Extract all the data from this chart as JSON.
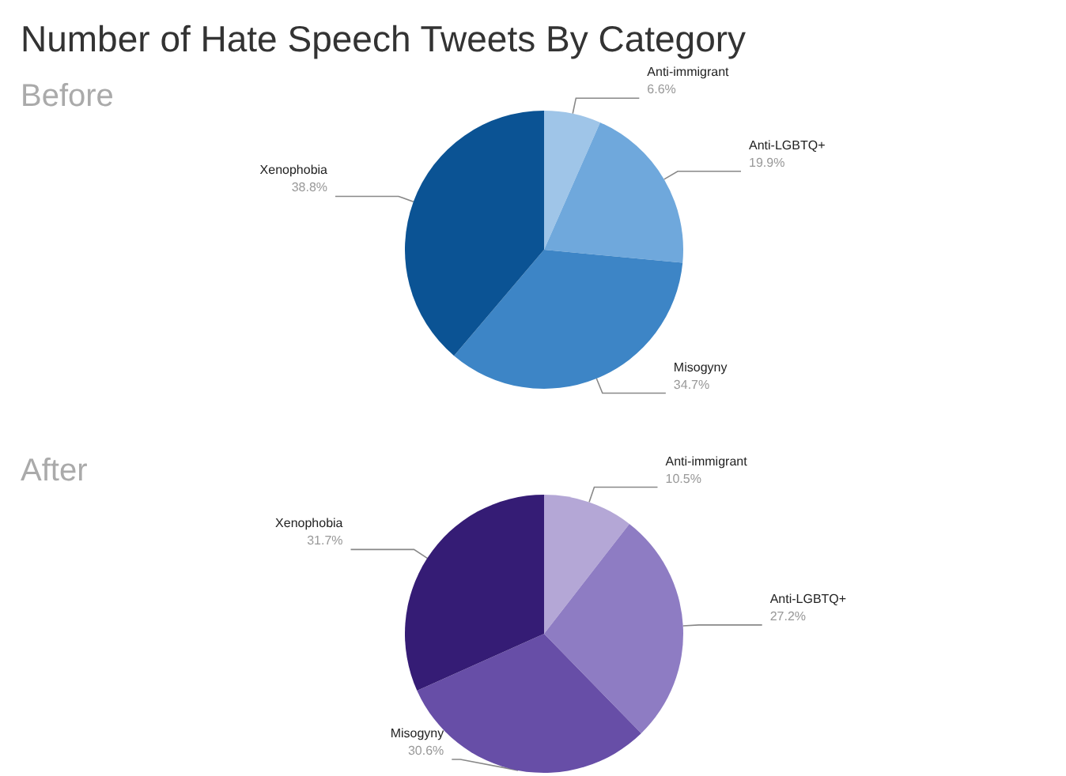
{
  "chart_data": [
    {
      "type": "pie",
      "title": "Number of Hate Speech Tweets By Category",
      "subtitle": "Before",
      "categories": [
        "Anti-immigrant",
        "Anti-LGBTQ+",
        "Misogyny",
        "Xenophobia"
      ],
      "values": [
        6.6,
        19.9,
        34.7,
        38.8
      ],
      "colors": [
        "#9fc5e8",
        "#6fa8dc",
        "#3d85c6",
        "#0b5394"
      ],
      "value_labels": [
        "6.6%",
        "19.9%",
        "34.7%",
        "38.8%"
      ],
      "legend": false
    },
    {
      "type": "pie",
      "title": "After",
      "categories": [
        "Anti-immigrant",
        "Anti-LGBTQ+",
        "Misogyny",
        "Xenophobia"
      ],
      "values": [
        10.5,
        27.2,
        30.6,
        31.7
      ],
      "colors": [
        "#b4a7d6",
        "#8e7cc3",
        "#674ea7",
        "#351c75"
      ],
      "value_labels": [
        "10.5%",
        "27.2%",
        "30.6%",
        "31.7%"
      ],
      "legend": false
    }
  ]
}
